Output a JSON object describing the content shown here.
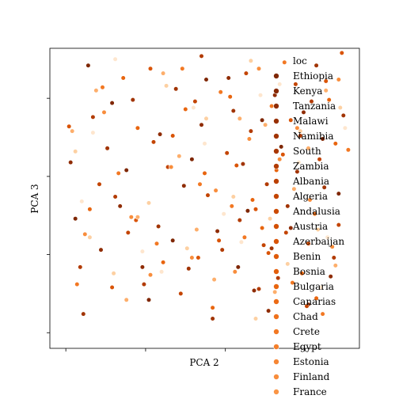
{
  "chart_data": {
    "type": "scatter",
    "title": "",
    "xlabel": "PCA 2",
    "ylabel": "PCA 3",
    "x_ticks": [
      -1.0,
      -0.5,
      0.0,
      0.5
    ],
    "y_ticks": [
      -1.0,
      -0.5,
      0.0,
      0.5
    ],
    "xlim": [
      -1.1,
      0.84
    ],
    "ylim": [
      -1.1,
      0.82
    ],
    "grid": false,
    "legend": {
      "title": "loc",
      "placement": "right",
      "entries": [
        {
          "label": "Ethiopia",
          "color": "#7f2704"
        },
        {
          "label": "Kenya",
          "color": "#872904"
        },
        {
          "label": "Tanzania",
          "color": "#8f2c04"
        },
        {
          "label": "Malawi",
          "color": "#983003"
        },
        {
          "label": "Namibia",
          "color": "#a13403"
        },
        {
          "label": "South",
          "color": "#a93703"
        },
        {
          "label": "Zambia",
          "color": "#b23b02"
        },
        {
          "label": "Albania",
          "color": "#bb4002"
        },
        {
          "label": "Algeria",
          "color": "#c34401"
        },
        {
          "label": "Andalusia",
          "color": "#cc4a02"
        },
        {
          "label": "Austria",
          "color": "#d34f04"
        },
        {
          "label": "Azerbaijan",
          "color": "#d95407"
        },
        {
          "label": "Benin",
          "color": "#df5a09"
        },
        {
          "label": "Bosnia",
          "color": "#e35f0c"
        },
        {
          "label": "Bulgaria",
          "color": "#e8650f"
        },
        {
          "label": "Canarias",
          "color": "#ec6b15"
        },
        {
          "label": "Chad",
          "color": "#ef711c"
        },
        {
          "label": "Crete",
          "color": "#f27823"
        },
        {
          "label": "Egypt",
          "color": "#f47f2b"
        },
        {
          "label": "Estonia",
          "color": "#f68634"
        },
        {
          "label": "Finland",
          "color": "#f88d3c"
        },
        {
          "label": "France",
          "color": "#fa9545"
        }
      ]
    },
    "series": [
      {
        "color": "#7f2704",
        "x": [
          -0.86,
          -0.62,
          0.52,
          -0.33,
          0.23,
          0.71,
          -0.12,
          -0.94,
          0.08,
          0.35,
          -0.71,
          0.61,
          -0.48,
          0.14,
          -0.21
        ],
        "y": [
          0.71,
          0.04,
          -0.82,
          -0.41,
          0.36,
          -0.11,
          0.62,
          -0.27,
          -0.58,
          0.19,
          0.47,
          0.24,
          -0.79,
          -0.22,
          0.11
        ]
      },
      {
        "color": "#8f2c04",
        "x": [
          -0.78,
          -0.41,
          0.31,
          0.66,
          -0.05,
          -0.97,
          0.18,
          0.49,
          -0.26,
          0.02,
          -0.66,
          0.41,
          -0.15,
          0.27,
          -0.52
        ],
        "y": [
          -0.47,
          0.27,
          0.52,
          -0.64,
          -0.35,
          0.09,
          -0.73,
          0.41,
          -0.06,
          0.63,
          -0.19,
          -0.33,
          0.33,
          -0.86,
          -0.58
        ]
      },
      {
        "color": "#a13403",
        "x": [
          -0.58,
          0.11,
          0.57,
          -0.89,
          0.39,
          -0.23,
          0.74,
          -0.42,
          0.05,
          -0.74,
          0.29,
          0.62,
          -0.08,
          -0.31,
          0.45
        ],
        "y": [
          0.49,
          0.08,
          0.71,
          -0.88,
          -0.19,
          -0.59,
          0.39,
          -0.32,
          0.42,
          0.18,
          -0.46,
          -0.07,
          -0.91,
          0.56,
          0.03
        ]
      },
      {
        "color": "#b23b02",
        "x": [
          -0.69,
          0.21,
          -0.37,
          0.47,
          0.09,
          -0.83,
          0.68,
          -0.15,
          0.33,
          -0.51,
          0.16,
          -0.02,
          0.54,
          -0.91,
          0.26
        ],
        "y": [
          -0.13,
          -0.72,
          0.58,
          0.26,
          -0.28,
          0.38,
          -0.52,
          0.77,
          -0.65,
          -0.69,
          0.29,
          -0.47,
          0.48,
          -0.58,
          -0.05
        ]
      },
      {
        "color": "#c34401",
        "x": [
          -0.45,
          0.38,
          -0.11,
          0.59,
          -0.79,
          0.13,
          -0.28,
          0.71,
          0.01,
          -0.61,
          0.44,
          -0.19,
          0.24,
          -0.36,
          0.51
        ],
        "y": [
          0.22,
          -0.36,
          -0.12,
          0.11,
          -0.05,
          0.66,
          -0.75,
          -0.31,
          0.15,
          -0.36,
          0.59,
          0.48,
          -0.44,
          0.06,
          -0.83
        ]
      },
      {
        "color": "#d95407",
        "x": [
          -0.17,
          0.63,
          -0.56,
          0.27,
          -0.98,
          0.41,
          -0.04,
          0.73,
          -0.33,
          0.19,
          -0.71,
          0.52,
          0.07,
          -0.47,
          0.36
        ],
        "y": [
          -0.52,
          0.61,
          -0.28,
          -0.49,
          0.32,
          0.36,
          -0.41,
          0.79,
          0.26,
          -0.21,
          -0.71,
          -0.43,
          0.07,
          0.69,
          0.14
        ]
      },
      {
        "color": "#e8650f",
        "x": [
          -0.64,
          0.17,
          0.48,
          -0.25,
          0.69,
          -0.08,
          -0.85,
          0.32,
          -0.39,
          0.57,
          0.03,
          -0.55,
          0.23,
          0.65,
          -0.13
        ],
        "y": [
          0.63,
          -0.15,
          -0.62,
          0.43,
          0.21,
          -0.84,
          -0.21,
          0.04,
          -0.55,
          -0.78,
          0.51,
          0.31,
          -0.33,
          0.49,
          0.02
        ]
      },
      {
        "color": "#f27823",
        "x": [
          -0.93,
          0.29,
          -0.43,
          0.56,
          -0.03,
          0.77,
          -0.67,
          0.12,
          -0.27,
          0.42,
          -0.16,
          0.61,
          -0.77,
          0.37,
          0.04
        ],
        "y": [
          -0.69,
          0.45,
          -0.43,
          -0.24,
          0.54,
          0.17,
          0.02,
          -0.39,
          0.69,
          -0.68,
          -0.05,
          -0.88,
          0.57,
          0.73,
          -0.19
        ]
      },
      {
        "color": "#f88d3c",
        "x": [
          -0.76,
          0.06,
          0.45,
          -0.34,
          0.67,
          -0.59,
          0.21,
          -0.06,
          0.53,
          -0.88,
          0.34,
          -0.21,
          0.71,
          -0.47,
          0.15
        ],
        "y": [
          0.41,
          -0.61,
          0.31,
          0.06,
          -0.45,
          -0.26,
          0.69,
          -0.09,
          -0.15,
          -0.37,
          0.11,
          -0.52,
          0.62,
          -0.63,
          0.24
        ]
      },
      {
        "color": "#fdae6b",
        "x": [
          -0.55,
          0.25,
          -0.07,
          0.63,
          -0.81,
          0.43,
          -0.29,
          0.09,
          -0.62,
          0.52,
          -0.18,
          0.31,
          -0.96,
          0.69,
          -0.39
        ],
        "y": [
          -0.26,
          0.33,
          -0.66,
          0.55,
          0.55,
          -0.08,
          0.13,
          0.37,
          -0.79,
          0.18,
          -0.34,
          -0.74,
          0.29,
          -0.57,
          0.66
        ]
      },
      {
        "color": "#fdd0a2",
        "x": [
          -0.94,
          0.16,
          -0.48,
          0.39,
          -0.12,
          0.72,
          -0.7,
          0.28,
          -0.24,
          0.58,
          -0.37,
          0.05,
          -0.85,
          0.47,
          0.19
        ],
        "y": [
          0.16,
          0.74,
          -0.17,
          -0.56,
          0.37,
          0.44,
          -0.62,
          -0.27,
          -0.46,
          -0.34,
          0.58,
          -0.13,
          -0.39,
          0.29,
          -0.91
        ]
      },
      {
        "color": "#fee6ce",
        "x": [
          -0.83,
          0.34,
          -0.2,
          0.6,
          -0.52,
          0.1,
          -0.69,
          0.46,
          -0.01,
          0.75,
          -0.4,
          0.22,
          -0.13,
          0.64,
          -0.9
        ],
        "y": [
          0.28,
          0.59,
          0.44,
          -0.71,
          -0.48,
          -0.42,
          0.75,
          0.09,
          -0.24,
          0.31,
          -0.61,
          0.52,
          0.21,
          -0.39,
          -0.16
        ]
      }
    ]
  }
}
